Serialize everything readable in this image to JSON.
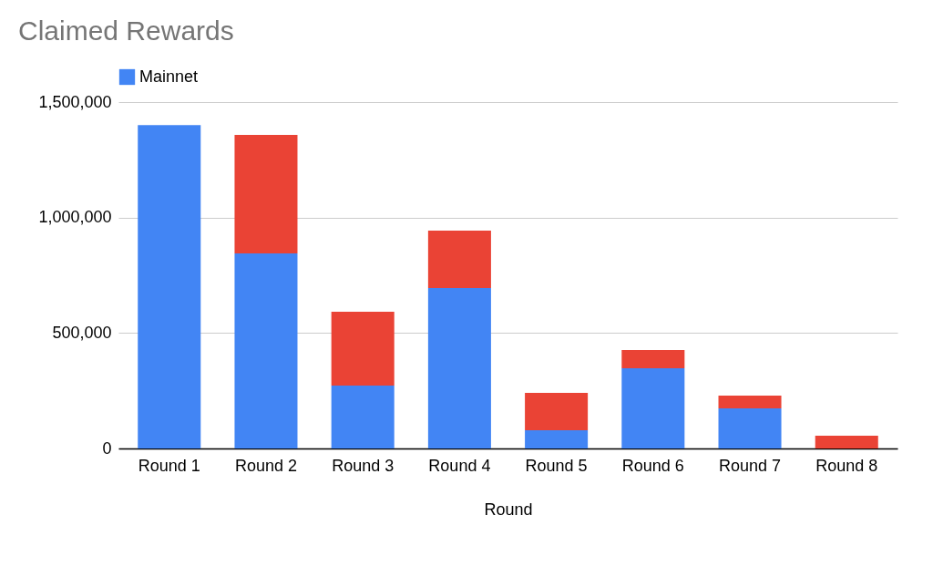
{
  "chart_data": {
    "type": "bar",
    "title": "Claimed Rewards",
    "xlabel": "Round",
    "stacked": true,
    "categories": [
      "Round 1",
      "Round 2",
      "Round 3",
      "Round 4",
      "Round 5",
      "Round 6",
      "Round 7",
      "Round 8"
    ],
    "series": [
      {
        "name": "Mainnet",
        "color": "#4285f4",
        "values": [
          1400000,
          845000,
          272000,
          695000,
          79000,
          347000,
          174000,
          0
        ]
      },
      {
        "color": "#ea4335",
        "values": [
          0,
          513000,
          320000,
          248000,
          162000,
          79000,
          55000,
          55000
        ]
      }
    ],
    "ylim": [
      0,
      1500000
    ],
    "yticks": [
      {
        "value": 0,
        "label": "0"
      },
      {
        "value": 500000,
        "label": "500,000"
      },
      {
        "value": 1000000,
        "label": "1,000,000"
      },
      {
        "value": 1500000,
        "label": "1,500,000"
      }
    ],
    "grid": "y",
    "legend": "top"
  }
}
